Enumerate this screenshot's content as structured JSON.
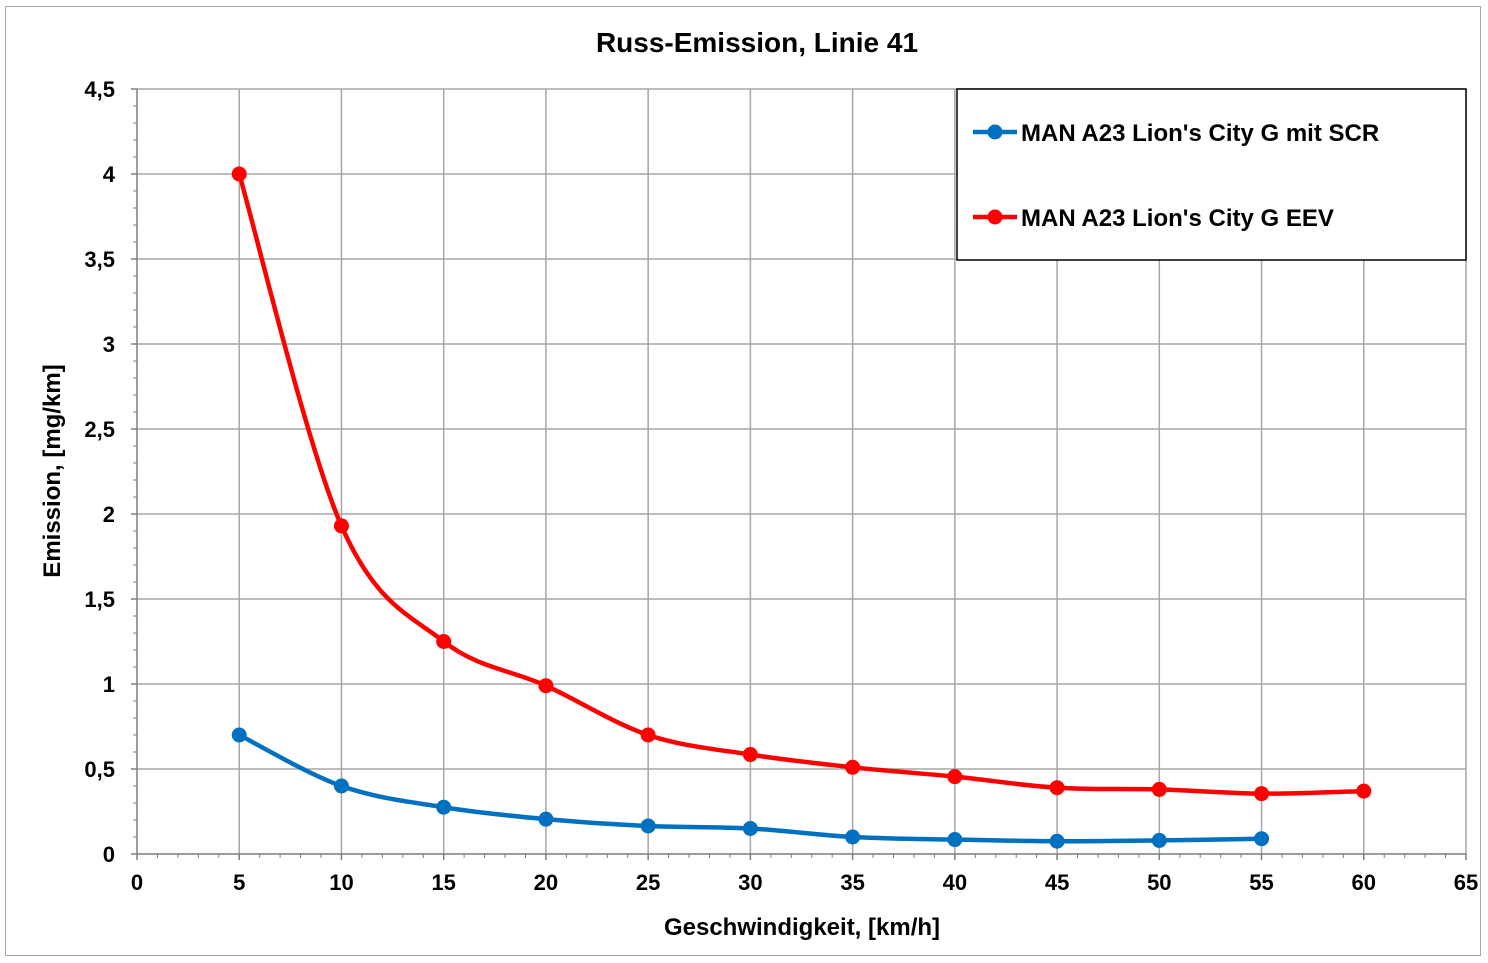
{
  "chart_data": {
    "type": "line",
    "title": "Russ-Emission,  Linie  41",
    "xlabel": "Geschwindigkeit, [km/h]",
    "ylabel": "Emission, [mg/km]",
    "xlim": [
      0,
      65
    ],
    "ylim": [
      0,
      4.5
    ],
    "x_ticks": [
      "0",
      "5",
      "10",
      "15",
      "20",
      "25",
      "30",
      "35",
      "40",
      "45",
      "50",
      "55",
      "60",
      "65"
    ],
    "y_ticks": [
      "0",
      "0,5",
      "1",
      "1,5",
      "2",
      "2,5",
      "3",
      "3,5",
      "4",
      "4,5"
    ],
    "grid": true,
    "legend_position": "top-right",
    "series": [
      {
        "name": "MAN A23 Lion's City G mit SCR",
        "color": "#0070c0",
        "x": [
          5,
          10,
          15,
          20,
          25,
          30,
          35,
          40,
          45,
          50,
          55
        ],
        "y": [
          0.7,
          0.4,
          0.275,
          0.205,
          0.165,
          0.15,
          0.1,
          0.085,
          0.075,
          0.08,
          0.09
        ]
      },
      {
        "name": "MAN A23 Lion's City G EEV",
        "color": "#ff0000",
        "x": [
          5,
          10,
          15,
          20,
          25,
          30,
          35,
          40,
          45,
          50,
          55,
          60
        ],
        "y": [
          4.0,
          1.93,
          1.25,
          0.99,
          0.7,
          0.585,
          0.51,
          0.455,
          0.39,
          0.38,
          0.355,
          0.37
        ]
      }
    ]
  }
}
